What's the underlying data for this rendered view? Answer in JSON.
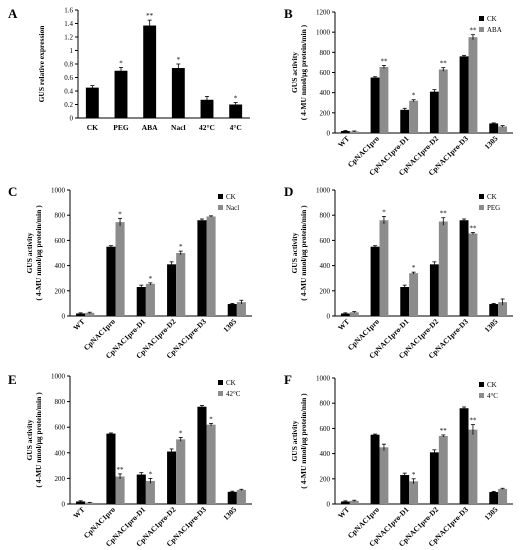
{
  "chart_data": [
    {
      "panel": "A",
      "type": "bar",
      "ylabel": "GUS  relative  expression",
      "ylim": [
        0,
        1.6
      ],
      "yticks": [
        "0",
        "0.2",
        "0.4",
        "0.6",
        "0.8",
        "1",
        "1.2",
        "1.4",
        "1.6"
      ],
      "categories": [
        "CK",
        "PEG",
        "ABA",
        "Nacl",
        "42°C",
        "4°C"
      ],
      "rotate_labels": false,
      "series": [
        {
          "values": [
            0.45,
            0.7,
            1.37,
            0.74,
            0.27,
            0.2
          ],
          "errors": [
            0.03,
            0.05,
            0.08,
            0.06,
            0.05,
            0.03
          ],
          "marks": [
            "",
            "*",
            "**",
            "*",
            "",
            "*"
          ]
        }
      ],
      "legend": []
    },
    {
      "panel": "B",
      "type": "bar",
      "ylabel": "GUS activity",
      "ylabel2": "( 4-MU nmol/μg protein/min )",
      "ylim": [
        0,
        1200
      ],
      "yticks": [
        "0",
        "200",
        "400",
        "600",
        "800",
        "1000",
        "1200"
      ],
      "categories": [
        "WT",
        "CpNAC1pro",
        "CpNAC1pro-D1",
        "CpNAC1pro-D2",
        "CpNAC1pro-D3",
        "1305"
      ],
      "rotate_labels": true,
      "series": [
        {
          "name": "CK",
          "color": "#000000",
          "values": [
            20,
            550,
            230,
            410,
            760,
            95
          ],
          "errors": [
            5,
            8,
            15,
            20,
            10,
            5
          ],
          "marks": [
            "",
            "",
            "",
            "",
            "",
            ""
          ]
        },
        {
          "name": "ABA",
          "color": "#8c8c8c",
          "values": [
            15,
            655,
            320,
            630,
            950,
            65
          ],
          "errors": [
            5,
            15,
            10,
            18,
            25,
            8
          ],
          "marks": [
            "",
            "**",
            "*",
            "**",
            "**",
            ""
          ]
        }
      ],
      "legend": [
        "CK",
        "ABA"
      ]
    },
    {
      "panel": "C",
      "type": "bar",
      "ylabel": "GUS activity",
      "ylabel2": "( 4-MU nmol/μg protein/min )",
      "ylim": [
        0,
        1000
      ],
      "yticks": [
        "0",
        "200",
        "400",
        "600",
        "800",
        "1000"
      ],
      "categories": [
        "WT",
        "CpNAC1pro",
        "CpNAC1pro-D1",
        "CpNAC1pro-D2",
        "CpNAC1pro-D3",
        "1305"
      ],
      "rotate_labels": true,
      "series": [
        {
          "name": "CK",
          "color": "#000000",
          "values": [
            20,
            550,
            230,
            410,
            760,
            95
          ],
          "errors": [
            5,
            8,
            15,
            20,
            10,
            5
          ],
          "marks": [
            "",
            "",
            "",
            "",
            "",
            ""
          ]
        },
        {
          "name": "Nacl",
          "color": "#8c8c8c",
          "values": [
            25,
            745,
            255,
            500,
            790,
            110
          ],
          "errors": [
            5,
            30,
            8,
            15,
            5,
            15
          ],
          "marks": [
            "",
            "*",
            "*",
            "*",
            "",
            ""
          ]
        }
      ],
      "legend": [
        "CK",
        "Nacl"
      ]
    },
    {
      "panel": "D",
      "type": "bar",
      "ylabel": "GUS activity",
      "ylabel2": "( 4-MU nmol/μg protein/min )",
      "ylim": [
        0,
        1000
      ],
      "yticks": [
        "0",
        "200",
        "400",
        "600",
        "800",
        "1000"
      ],
      "categories": [
        "WT",
        "CpNAC1pro",
        "CpNAC1pro-D1",
        "CpNAC1pro-D2",
        "CpNAC1pro-D3",
        "1305"
      ],
      "rotate_labels": true,
      "series": [
        {
          "name": "CK",
          "color": "#000000",
          "values": [
            20,
            550,
            230,
            410,
            760,
            95
          ],
          "errors": [
            5,
            8,
            15,
            20,
            10,
            5
          ],
          "marks": [
            "",
            "",
            "",
            "",
            "",
            ""
          ]
        },
        {
          "name": "PEG",
          "color": "#8c8c8c",
          "values": [
            30,
            760,
            340,
            750,
            655,
            110
          ],
          "errors": [
            5,
            30,
            8,
            30,
            8,
            25
          ],
          "marks": [
            "",
            "*",
            "*",
            "**",
            "**",
            ""
          ]
        }
      ],
      "legend": [
        "CK",
        "PEG"
      ]
    },
    {
      "panel": "E",
      "type": "bar",
      "ylabel": "GUS activity",
      "ylabel2": "( 4-MU nmol/μg protein/min )",
      "ylim": [
        0,
        1000
      ],
      "yticks": [
        "0",
        "200",
        "400",
        "600",
        "800",
        "1000"
      ],
      "categories": [
        "WT",
        "CpNAC1pro",
        "CpNAC1pro-D1",
        "CpNAC1pro-D2",
        "CpNAC1pro-D3",
        "1305"
      ],
      "rotate_labels": true,
      "series": [
        {
          "name": "CK",
          "color": "#000000",
          "values": [
            20,
            550,
            230,
            410,
            760,
            95
          ],
          "errors": [
            5,
            5,
            15,
            20,
            10,
            5
          ],
          "marks": [
            "",
            "",
            "",
            "",
            "",
            ""
          ]
        },
        {
          "name": "42°C",
          "color": "#8c8c8c",
          "values": [
            10,
            215,
            180,
            505,
            620,
            110
          ],
          "errors": [
            3,
            20,
            20,
            15,
            10,
            5
          ],
          "marks": [
            "",
            "**",
            "*",
            "*",
            "*",
            ""
          ]
        }
      ],
      "legend": [
        "CK",
        "42°C"
      ]
    },
    {
      "panel": "F",
      "type": "bar",
      "ylabel": "GUS activity",
      "ylabel2": "( 4-MU nmol/μg protein/min )",
      "ylim": [
        0,
        1000
      ],
      "yticks": [
        "0",
        "200",
        "400",
        "600",
        "800",
        "1000"
      ],
      "categories": [
        "WT",
        "CpNAC1pro",
        "CpNAC1pro-D1",
        "CpNAC1pro-D2",
        "CpNAC1pro-D3",
        "1305"
      ],
      "rotate_labels": true,
      "series": [
        {
          "name": "CK",
          "color": "#000000",
          "values": [
            20,
            550,
            230,
            410,
            760,
            95
          ],
          "errors": [
            5,
            5,
            15,
            20,
            10,
            5
          ],
          "marks": [
            "",
            "",
            "",
            "",
            "",
            ""
          ]
        },
        {
          "name": "4°C",
          "color": "#8c8c8c",
          "values": [
            25,
            450,
            180,
            540,
            590,
            120
          ],
          "errors": [
            5,
            25,
            20,
            8,
            40,
            5
          ],
          "marks": [
            "",
            "",
            "*",
            "**",
            "**",
            ""
          ]
        }
      ],
      "legend": [
        "CK",
        "4°C"
      ]
    }
  ]
}
